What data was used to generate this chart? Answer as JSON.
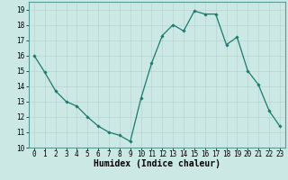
{
  "x": [
    0,
    1,
    2,
    3,
    4,
    5,
    6,
    7,
    8,
    9,
    10,
    11,
    12,
    13,
    14,
    15,
    16,
    17,
    18,
    19,
    20,
    21,
    22,
    23
  ],
  "y": [
    16.0,
    14.9,
    13.7,
    13.0,
    12.7,
    12.0,
    11.4,
    11.0,
    10.8,
    10.4,
    13.2,
    15.5,
    17.3,
    18.0,
    17.6,
    18.9,
    18.7,
    18.7,
    16.7,
    17.2,
    15.0,
    14.1,
    12.4,
    11.4
  ],
  "line_color": "#1a7a6e",
  "marker": "D",
  "markersize": 1.8,
  "linewidth": 0.9,
  "xlabel": "Humidex (Indice chaleur)",
  "xlabel_fontsize": 7,
  "xlabel_fontweight": "bold",
  "bg_color": "#cce8e4",
  "grid_color": "#b8d4d0",
  "ylim": [
    10,
    19.5
  ],
  "xlim": [
    -0.5,
    23.5
  ],
  "yticks": [
    10,
    11,
    12,
    13,
    14,
    15,
    16,
    17,
    18,
    19
  ],
  "xticks": [
    0,
    1,
    2,
    3,
    4,
    5,
    6,
    7,
    8,
    9,
    10,
    11,
    12,
    13,
    14,
    15,
    16,
    17,
    18,
    19,
    20,
    21,
    22,
    23
  ],
  "tick_fontsize": 5.5,
  "spine_color": "#5a9a94"
}
